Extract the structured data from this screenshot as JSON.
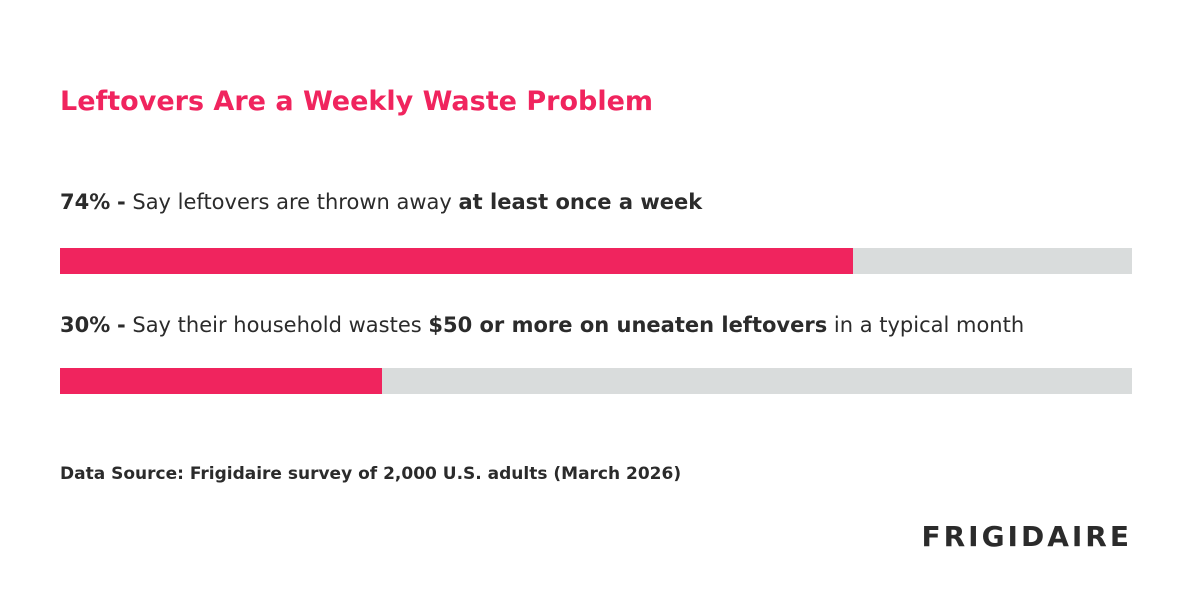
{
  "chart_data": {
    "type": "progress",
    "title": "Leftovers Are a Weekly Waste Problem",
    "values": [
      74,
      30
    ],
    "value_labels": [
      "74%",
      "30%"
    ],
    "separator": "-",
    "categories": [
      [
        {
          "text": "Say leftovers are thrown away ",
          "bold": false
        },
        {
          "text": "at least once a week",
          "bold": true
        }
      ],
      [
        {
          "text": "Say their household wastes ",
          "bold": false
        },
        {
          "text": "$50 or more on uneaten leftovers",
          "bold": true
        },
        {
          "text": " in a typical month",
          "bold": false
        }
      ]
    ],
    "xlim": [
      0,
      100
    ],
    "color": "#f0245e",
    "track_color": "#d9dcdc",
    "source": "Data Source: Frigidaire survey of 2,000 U.S. adults (March 2026)",
    "brand": "FRIGIDAIRE"
  }
}
